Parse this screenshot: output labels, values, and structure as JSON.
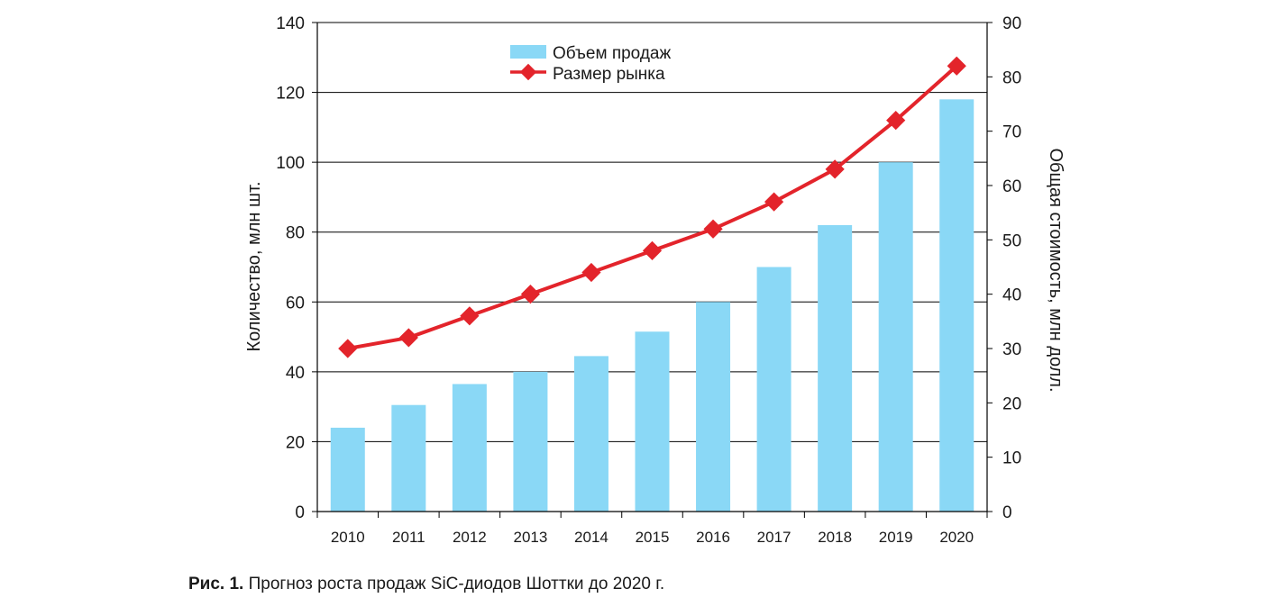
{
  "chart_data": {
    "type": "bar",
    "categories": [
      "2010",
      "2011",
      "2012",
      "2013",
      "2014",
      "2015",
      "2016",
      "2017",
      "2018",
      "2019",
      "2020"
    ],
    "series": [
      {
        "name": "Объем продаж",
        "type": "bar",
        "axis": "left",
        "color": "#8ad8f6",
        "values": [
          24,
          30.5,
          36.5,
          40,
          44.5,
          51.5,
          60,
          70,
          82,
          100,
          118
        ]
      },
      {
        "name": "Размер рынка",
        "type": "line",
        "axis": "right",
        "color": "#e3242b",
        "values": [
          30,
          32,
          36,
          40,
          44,
          48,
          52,
          57,
          63,
          72,
          82
        ]
      }
    ],
    "ylabel": "Количество, млн шт.",
    "y2label": "Общая стоимость, млн долл.",
    "ylim": [
      0,
      140
    ],
    "y2lim": [
      0,
      90
    ],
    "yticks": [
      0,
      20,
      40,
      60,
      80,
      100,
      120,
      140
    ],
    "y2ticks": [
      0,
      10,
      20,
      30,
      40,
      50,
      60,
      70,
      80,
      90
    ],
    "grid": true,
    "legend_position": "top-center"
  },
  "caption": {
    "label": "Рис. 1.",
    "text": "Прогноз роста продаж SiC-диодов Шоттки до 2020 г."
  }
}
